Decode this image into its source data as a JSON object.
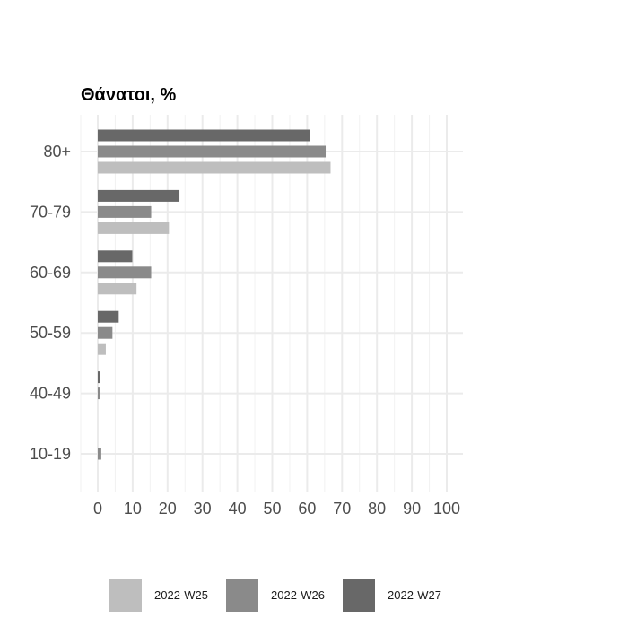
{
  "chart_data": {
    "type": "bar",
    "orientation": "horizontal",
    "title": "Θάνατοι, %",
    "xlabel": "",
    "ylabel": "",
    "xlim": [
      0,
      100
    ],
    "x_ticks": [
      0,
      10,
      20,
      30,
      40,
      50,
      60,
      70,
      80,
      90,
      100
    ],
    "categories": [
      "80+",
      "70-79",
      "60-69",
      "50-59",
      "40-49",
      "10-19"
    ],
    "series": [
      {
        "name": "2022-W25",
        "color": "#bebebe",
        "values": [
          66.7,
          20.4,
          11.1,
          2.3,
          0,
          0
        ]
      },
      {
        "name": "2022-W26",
        "color": "#8a8a8a",
        "values": [
          65.3,
          15.3,
          15.3,
          4.2,
          0.7,
          1.0
        ]
      },
      {
        "name": "2022-W27",
        "color": "#686868",
        "values": [
          60.9,
          23.4,
          9.9,
          6.0,
          0.6,
          0
        ]
      }
    ],
    "grid": true,
    "legend_position": "bottom"
  }
}
